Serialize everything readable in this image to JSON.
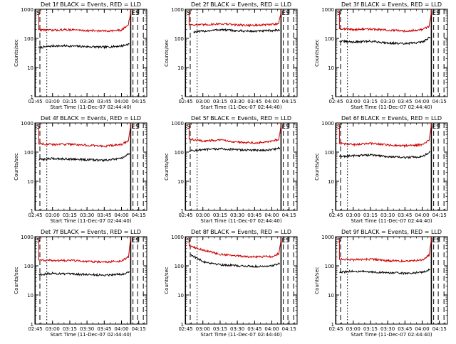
{
  "chart_data": [
    {
      "type": "line",
      "title": "Det 1f BLACK = Events, RED = LLD",
      "xlabel": "Start Time (11-Dec-07 02:44:40)",
      "ylabel": "Counts/sec",
      "yscale": "log",
      "ylim": [
        1,
        1000
      ],
      "xticks": [
        "02:45",
        "03:00",
        "03:15",
        "03:30",
        "03:45",
        "04:00",
        "04:15"
      ],
      "yticks": [
        "1",
        "10",
        "100",
        "1000"
      ],
      "x_start": "02:44:40",
      "x_end": "04:22",
      "markers": {
        "start_label": "S",
        "end_label": "ES",
        "lines": [
          {
            "time": "02:44:50",
            "style": "solid"
          },
          {
            "time": "02:49",
            "style": "dashed"
          },
          {
            "time": "02:55",
            "style": "dotted"
          },
          {
            "time": "04:08",
            "style": "solid"
          },
          {
            "time": "04:10",
            "style": "dashed"
          },
          {
            "time": "04:14",
            "style": "dashed"
          },
          {
            "time": "04:19",
            "style": "dashed"
          }
        ]
      },
      "series": [
        {
          "name": "Events",
          "color": "#000000",
          "times": [
            "02:48",
            "03:00",
            "03:15",
            "03:30",
            "03:45",
            "04:00",
            "04:07"
          ],
          "values": [
            48,
            55,
            55,
            52,
            50,
            55,
            65
          ]
        },
        {
          "name": "LLD",
          "color": "#cc0000",
          "times": [
            "02:48",
            "03:00",
            "03:15",
            "03:30",
            "03:45",
            "04:00",
            "04:06",
            "04:08"
          ],
          "values": [
            200,
            190,
            200,
            185,
            180,
            190,
            300,
            800
          ]
        }
      ]
    },
    {
      "type": "line",
      "title": "Det 2f BLACK = Events, RED = LLD",
      "xlabel": "Start Time (11-Dec-07 02:44:40)",
      "ylabel": "Counts/sec",
      "yscale": "log",
      "ylim": [
        1,
        1000
      ],
      "xticks": [
        "02:45",
        "03:00",
        "03:15",
        "03:30",
        "03:45",
        "04:00",
        "04:15"
      ],
      "yticks": [
        "1",
        "10",
        "100",
        "1000"
      ],
      "x_start": "02:44:40",
      "x_end": "04:22",
      "markers": {
        "start_label": "S",
        "end_label": "ES",
        "lines": [
          {
            "time": "02:44:50",
            "style": "solid"
          },
          {
            "time": "02:49",
            "style": "dashed"
          },
          {
            "time": "02:55",
            "style": "dotted"
          },
          {
            "time": "04:08",
            "style": "solid"
          },
          {
            "time": "04:10",
            "style": "dashed"
          },
          {
            "time": "04:14",
            "style": "dashed"
          },
          {
            "time": "04:19",
            "style": "dashed"
          }
        ]
      },
      "series": [
        {
          "name": "Events",
          "color": "#000000",
          "times": [
            "02:52",
            "03:00",
            "03:15",
            "03:30",
            "03:45",
            "04:00",
            "04:07"
          ],
          "values": [
            165,
            175,
            200,
            180,
            175,
            185,
            195
          ]
        },
        {
          "name": "LLD",
          "color": "#cc0000",
          "times": [
            "02:48",
            "03:00",
            "03:15",
            "03:30",
            "03:45",
            "04:00",
            "04:06",
            "04:08"
          ],
          "values": [
            300,
            290,
            320,
            290,
            280,
            300,
            330,
            800
          ]
        }
      ]
    },
    {
      "type": "line",
      "title": "Det 3f BLACK = Events, RED = LLD",
      "xlabel": "Start Time (11-Dec-07 02:44:40)",
      "ylabel": "Counts/sec",
      "yscale": "log",
      "ylim": [
        1,
        1000
      ],
      "xticks": [
        "02:45",
        "03:00",
        "03:15",
        "03:30",
        "03:45",
        "04:00",
        "04:15"
      ],
      "yticks": [
        "1",
        "10",
        "100",
        "1000"
      ],
      "x_start": "02:44:40",
      "x_end": "04:22",
      "markers": {
        "start_label": "S",
        "end_label": "ES",
        "lines": [
          {
            "time": "02:44:50",
            "style": "solid"
          },
          {
            "time": "02:49",
            "style": "dashed"
          },
          {
            "time": "02:55",
            "style": "dotted"
          },
          {
            "time": "04:08",
            "style": "solid"
          },
          {
            "time": "04:10",
            "style": "dashed"
          },
          {
            "time": "04:14",
            "style": "dashed"
          },
          {
            "time": "04:19",
            "style": "dashed"
          }
        ]
      },
      "series": [
        {
          "name": "Events",
          "color": "#000000",
          "times": [
            "02:48",
            "03:00",
            "03:15",
            "03:30",
            "03:45",
            "04:00",
            "04:07"
          ],
          "values": [
            80,
            75,
            80,
            70,
            65,
            75,
            110
          ]
        },
        {
          "name": "LLD",
          "color": "#cc0000",
          "times": [
            "02:48",
            "03:00",
            "03:15",
            "03:30",
            "03:45",
            "04:00",
            "04:06",
            "04:08"
          ],
          "values": [
            220,
            200,
            210,
            190,
            180,
            200,
            260,
            800
          ]
        }
      ]
    },
    {
      "type": "line",
      "title": "Det 4f BLACK = Events, RED = LLD",
      "xlabel": "Start Time (11-Dec-07 02:44:40)",
      "ylabel": "Counts/sec",
      "yscale": "log",
      "ylim": [
        1,
        1000
      ],
      "xticks": [
        "02:45",
        "03:00",
        "03:15",
        "03:30",
        "03:45",
        "04:00",
        "04:15"
      ],
      "yticks": [
        "1",
        "10",
        "100",
        "1000"
      ],
      "x_start": "02:44:40",
      "x_end": "04:22",
      "markers": {
        "start_label": "S",
        "end_label": "ES",
        "lines": [
          {
            "time": "02:44:50",
            "style": "solid"
          },
          {
            "time": "02:49",
            "style": "dashed"
          },
          {
            "time": "02:55",
            "style": "dotted"
          },
          {
            "time": "04:08",
            "style": "solid"
          },
          {
            "time": "04:10",
            "style": "dashed"
          },
          {
            "time": "04:14",
            "style": "dashed"
          },
          {
            "time": "04:19",
            "style": "dashed"
          }
        ]
      },
      "series": [
        {
          "name": "Events",
          "color": "#000000",
          "times": [
            "02:48",
            "03:00",
            "03:15",
            "03:30",
            "03:45",
            "04:00",
            "04:07"
          ],
          "values": [
            55,
            60,
            58,
            55,
            52,
            60,
            90
          ]
        },
        {
          "name": "LLD",
          "color": "#cc0000",
          "times": [
            "02:48",
            "03:00",
            "03:15",
            "03:30",
            "03:45",
            "04:00",
            "04:06",
            "04:08"
          ],
          "values": [
            200,
            180,
            190,
            170,
            160,
            180,
            250,
            800
          ]
        }
      ]
    },
    {
      "type": "line",
      "title": "Det 5f BLACK = Events, RED = LLD",
      "xlabel": "Start Time (11-Dec-07 02:44:40)",
      "ylabel": "Counts/sec",
      "yscale": "log",
      "ylim": [
        1,
        1000
      ],
      "xticks": [
        "02:45",
        "03:00",
        "03:15",
        "03:30",
        "03:45",
        "04:00",
        "04:15"
      ],
      "yticks": [
        "1",
        "10",
        "100",
        "1000"
      ],
      "x_start": "02:44:40",
      "x_end": "04:22",
      "markers": {
        "start_label": "S",
        "end_label": "ES",
        "lines": [
          {
            "time": "02:44:50",
            "style": "solid"
          },
          {
            "time": "02:49",
            "style": "dashed"
          },
          {
            "time": "02:55",
            "style": "dotted"
          },
          {
            "time": "04:08",
            "style": "solid"
          },
          {
            "time": "04:10",
            "style": "dashed"
          },
          {
            "time": "04:14",
            "style": "dashed"
          },
          {
            "time": "04:19",
            "style": "dashed"
          }
        ]
      },
      "series": [
        {
          "name": "Events",
          "color": "#000000",
          "times": [
            "02:48",
            "03:00",
            "03:15",
            "03:30",
            "03:45",
            "04:00",
            "04:07"
          ],
          "values": [
            110,
            120,
            130,
            120,
            115,
            120,
            140
          ]
        },
        {
          "name": "LLD",
          "color": "#cc0000",
          "times": [
            "02:48",
            "03:00",
            "03:15",
            "03:30",
            "03:45",
            "04:00",
            "04:06",
            "04:08"
          ],
          "values": [
            280,
            240,
            260,
            220,
            210,
            230,
            280,
            800
          ]
        }
      ]
    },
    {
      "type": "line",
      "title": "Det 6f BLACK = Events, RED = LLD",
      "xlabel": "Start Time (11-Dec-07 02:44:40)",
      "ylabel": "Counts/sec",
      "yscale": "log",
      "ylim": [
        1,
        1000
      ],
      "xticks": [
        "02:45",
        "03:00",
        "03:15",
        "03:30",
        "03:45",
        "04:00",
        "04:15"
      ],
      "yticks": [
        "1",
        "10",
        "100",
        "1000"
      ],
      "x_start": "02:44:40",
      "x_end": "04:22",
      "markers": {
        "start_label": "S",
        "end_label": "ES",
        "lines": [
          {
            "time": "02:44:50",
            "style": "solid"
          },
          {
            "time": "02:49",
            "style": "dashed"
          },
          {
            "time": "02:55",
            "style": "dotted"
          },
          {
            "time": "04:08",
            "style": "solid"
          },
          {
            "time": "04:10",
            "style": "dashed"
          },
          {
            "time": "04:14",
            "style": "dashed"
          },
          {
            "time": "04:19",
            "style": "dashed"
          }
        ]
      },
      "series": [
        {
          "name": "Events",
          "color": "#000000",
          "times": [
            "02:48",
            "03:00",
            "03:15",
            "03:30",
            "03:45",
            "04:00",
            "04:07"
          ],
          "values": [
            70,
            75,
            80,
            70,
            65,
            70,
            100
          ]
        },
        {
          "name": "LLD",
          "color": "#cc0000",
          "times": [
            "02:48",
            "03:00",
            "03:15",
            "03:30",
            "03:45",
            "04:00",
            "04:06",
            "04:08"
          ],
          "values": [
            200,
            180,
            200,
            175,
            165,
            180,
            260,
            800
          ]
        }
      ]
    },
    {
      "type": "line",
      "title": "Det 7f BLACK = Events, RED = LLD",
      "xlabel": "Start Time (11-Dec-07 02:44:40)",
      "ylabel": "Counts/sec",
      "yscale": "log",
      "ylim": [
        1,
        1000
      ],
      "xticks": [
        "02:45",
        "03:00",
        "03:15",
        "03:30",
        "03:45",
        "04:00",
        "04:15"
      ],
      "yticks": [
        "1",
        "10",
        "100",
        "1000"
      ],
      "x_start": "02:44:40",
      "x_end": "04:22",
      "markers": {
        "start_label": "S",
        "end_label": "ES",
        "lines": [
          {
            "time": "02:44:50",
            "style": "solid"
          },
          {
            "time": "02:49",
            "style": "dashed"
          },
          {
            "time": "02:55",
            "style": "dotted"
          },
          {
            "time": "04:08",
            "style": "solid"
          },
          {
            "time": "04:10",
            "style": "dashed"
          },
          {
            "time": "04:14",
            "style": "dashed"
          },
          {
            "time": "04:19",
            "style": "dashed"
          }
        ]
      },
      "series": [
        {
          "name": "Events",
          "color": "#000000",
          "times": [
            "02:48",
            "03:00",
            "03:15",
            "03:30",
            "03:45",
            "04:00",
            "04:07"
          ],
          "values": [
            50,
            55,
            52,
            50,
            48,
            52,
            60
          ]
        },
        {
          "name": "LLD",
          "color": "#cc0000",
          "times": [
            "02:48",
            "03:00",
            "03:15",
            "03:30",
            "03:45",
            "04:00",
            "04:06",
            "04:08"
          ],
          "values": [
            160,
            150,
            155,
            140,
            135,
            145,
            200,
            800
          ]
        }
      ]
    },
    {
      "type": "line",
      "title": "Det 8f BLACK = Events, RED = LLD",
      "xlabel": "Start Time (11-Dec-07 02:44:40)",
      "ylabel": "Counts/sec",
      "yscale": "log",
      "ylim": [
        1,
        1000
      ],
      "xticks": [
        "02:45",
        "03:00",
        "03:15",
        "03:30",
        "03:45",
        "04:00",
        "04:15"
      ],
      "yticks": [
        "1",
        "10",
        "100",
        "1000"
      ],
      "x_start": "02:44:40",
      "x_end": "04:22",
      "markers": {
        "start_label": "S",
        "end_label": "ES",
        "lines": [
          {
            "time": "02:44:50",
            "style": "solid"
          },
          {
            "time": "02:49",
            "style": "dashed"
          },
          {
            "time": "02:55",
            "style": "dotted"
          },
          {
            "time": "04:08",
            "style": "solid"
          },
          {
            "time": "04:10",
            "style": "dashed"
          },
          {
            "time": "04:14",
            "style": "dashed"
          },
          {
            "time": "04:19",
            "style": "dashed"
          }
        ]
      },
      "series": [
        {
          "name": "Events",
          "color": "#000000",
          "times": [
            "02:49",
            "02:55",
            "03:00",
            "03:15",
            "03:30",
            "03:45",
            "04:00",
            "04:07"
          ],
          "values": [
            250,
            180,
            140,
            110,
            100,
            95,
            100,
            120
          ]
        },
        {
          "name": "LLD",
          "color": "#cc0000",
          "times": [
            "02:48",
            "02:55",
            "03:00",
            "03:15",
            "03:30",
            "03:45",
            "04:00",
            "04:06",
            "04:08"
          ],
          "values": [
            500,
            400,
            350,
            250,
            220,
            200,
            210,
            260,
            800
          ]
        }
      ]
    },
    {
      "type": "line",
      "title": "Det 9f BLACK = Events, RED = LLD",
      "xlabel": "Start Time (11-Dec-07 02:44:40)",
      "ylabel": "Counts/sec",
      "yscale": "log",
      "ylim": [
        1,
        1000
      ],
      "xticks": [
        "02:45",
        "03:00",
        "03:15",
        "03:30",
        "03:45",
        "04:00",
        "04:15"
      ],
      "yticks": [
        "1",
        "10",
        "100",
        "1000"
      ],
      "x_start": "02:44:40",
      "x_end": "04:22",
      "markers": {
        "start_label": "S",
        "end_label": "ES",
        "lines": [
          {
            "time": "02:44:50",
            "style": "solid"
          },
          {
            "time": "02:49",
            "style": "dashed"
          },
          {
            "time": "02:55",
            "style": "dotted"
          },
          {
            "time": "04:08",
            "style": "solid"
          },
          {
            "time": "04:10",
            "style": "dashed"
          },
          {
            "time": "04:14",
            "style": "dashed"
          },
          {
            "time": "04:19",
            "style": "dashed"
          }
        ]
      },
      "series": [
        {
          "name": "Events",
          "color": "#000000",
          "times": [
            "02:48",
            "03:00",
            "03:15",
            "03:30",
            "03:45",
            "04:00",
            "04:07"
          ],
          "values": [
            60,
            65,
            62,
            58,
            55,
            60,
            75
          ]
        },
        {
          "name": "LLD",
          "color": "#cc0000",
          "times": [
            "02:48",
            "03:00",
            "03:15",
            "03:30",
            "03:45",
            "04:00",
            "04:06",
            "04:08"
          ],
          "values": [
            170,
            160,
            170,
            150,
            145,
            160,
            230,
            800
          ]
        }
      ]
    }
  ]
}
